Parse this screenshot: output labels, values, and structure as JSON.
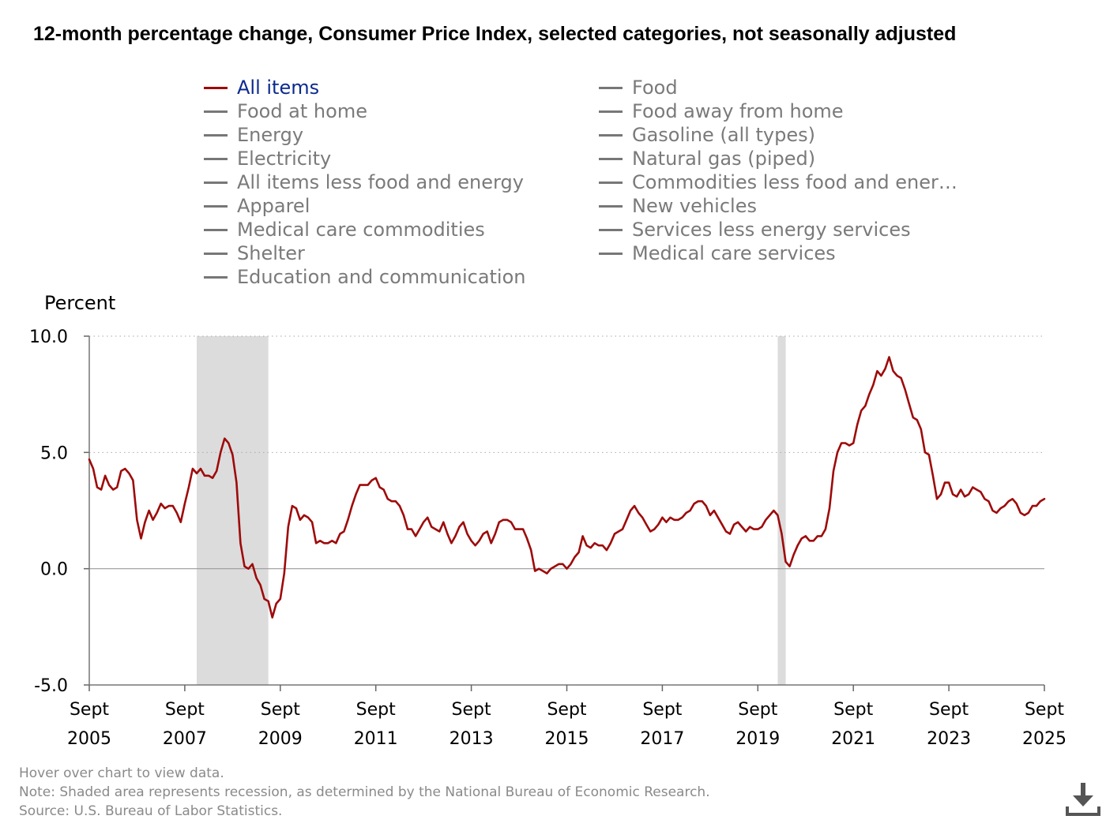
{
  "title": "12-month percentage change, Consumer Price Index, selected categories, not seasonally adjusted",
  "legend": {
    "items": [
      {
        "label": "All items",
        "active": true
      },
      {
        "label": "Food at home",
        "active": false
      },
      {
        "label": "Energy",
        "active": false
      },
      {
        "label": "Electricity",
        "active": false
      },
      {
        "label": "All items less food and energy",
        "active": false
      },
      {
        "label": "Apparel",
        "active": false
      },
      {
        "label": "Medical care commodities",
        "active": false
      },
      {
        "label": "Shelter",
        "active": false
      },
      {
        "label": "Education and communication",
        "active": false
      },
      {
        "label": "Food",
        "active": false
      },
      {
        "label": "Food away from home",
        "active": false
      },
      {
        "label": "Gasoline (all types)",
        "active": false
      },
      {
        "label": "Natural gas (piped)",
        "active": false
      },
      {
        "label": "Commodities less food and ener…",
        "active": false
      },
      {
        "label": "New vehicles",
        "active": false
      },
      {
        "label": "Services less energy services",
        "active": false
      },
      {
        "label": "Medical care services",
        "active": false
      }
    ]
  },
  "footnotes": {
    "hover": "Hover over chart to view data.",
    "note": "Note: Shaded area represents recession, as determined by the National Bureau of Economic Research.",
    "source": "Source: U.S. Bureau of Labor Statistics."
  },
  "download": {
    "icon": "download-icon"
  },
  "chart_data": {
    "type": "line",
    "title": "12-month percentage change, Consumer Price Index, selected categories, not seasonally adjusted",
    "ylabel": "Percent",
    "xlabel": "",
    "ylim": [
      -5,
      10
    ],
    "yticks": [
      -5,
      0,
      5,
      10
    ],
    "ytick_labels": [
      "-5.0",
      "0.0",
      "5.0",
      "10.0"
    ],
    "xlim": [
      2005.667,
      2025.667
    ],
    "xticks": [
      {
        "x": 2005.667,
        "line1": "Sept",
        "line2": "2005"
      },
      {
        "x": 2007.667,
        "line1": "Sept",
        "line2": "2007"
      },
      {
        "x": 2009.667,
        "line1": "Sept",
        "line2": "2009"
      },
      {
        "x": 2011.667,
        "line1": "Sept",
        "line2": "2011"
      },
      {
        "x": 2013.667,
        "line1": "Sept",
        "line2": "2013"
      },
      {
        "x": 2015.667,
        "line1": "Sept",
        "line2": "2015"
      },
      {
        "x": 2017.667,
        "line1": "Sept",
        "line2": "2017"
      },
      {
        "x": 2019.667,
        "line1": "Sept",
        "line2": "2019"
      },
      {
        "x": 2021.667,
        "line1": "Sept",
        "line2": "2021"
      },
      {
        "x": 2023.667,
        "line1": "Sept",
        "line2": "2023"
      },
      {
        "x": 2025.667,
        "line1": "Sept",
        "line2": "2025"
      }
    ],
    "grid": "dotted horizontal",
    "recessions": [
      [
        2007.917,
        2009.417
      ],
      [
        2020.083,
        2020.25
      ]
    ],
    "series": [
      {
        "name": "All items",
        "color": "#9e0a0a",
        "x": [
          2005.667,
          2005.75,
          2005.833,
          2005.917,
          2006.0,
          2006.083,
          2006.167,
          2006.25,
          2006.333,
          2006.417,
          2006.5,
          2006.583,
          2006.667,
          2006.75,
          2006.833,
          2006.917,
          2007.0,
          2007.083,
          2007.167,
          2007.25,
          2007.333,
          2007.417,
          2007.5,
          2007.583,
          2007.667,
          2007.75,
          2007.833,
          2007.917,
          2008.0,
          2008.083,
          2008.167,
          2008.25,
          2008.333,
          2008.417,
          2008.5,
          2008.583,
          2008.667,
          2008.75,
          2008.833,
          2008.917,
          2009.0,
          2009.083,
          2009.167,
          2009.25,
          2009.333,
          2009.417,
          2009.5,
          2009.583,
          2009.667,
          2009.75,
          2009.833,
          2009.917,
          2010.0,
          2010.083,
          2010.167,
          2010.25,
          2010.333,
          2010.417,
          2010.5,
          2010.583,
          2010.667,
          2010.75,
          2010.833,
          2010.917,
          2011.0,
          2011.083,
          2011.167,
          2011.25,
          2011.333,
          2011.417,
          2011.5,
          2011.583,
          2011.667,
          2011.75,
          2011.833,
          2011.917,
          2012.0,
          2012.083,
          2012.167,
          2012.25,
          2012.333,
          2012.417,
          2012.5,
          2012.583,
          2012.667,
          2012.75,
          2012.833,
          2012.917,
          2013.0,
          2013.083,
          2013.167,
          2013.25,
          2013.333,
          2013.417,
          2013.5,
          2013.583,
          2013.667,
          2013.75,
          2013.833,
          2013.917,
          2014.0,
          2014.083,
          2014.167,
          2014.25,
          2014.333,
          2014.417,
          2014.5,
          2014.583,
          2014.667,
          2014.75,
          2014.833,
          2014.917,
          2015.0,
          2015.083,
          2015.167,
          2015.25,
          2015.333,
          2015.417,
          2015.5,
          2015.583,
          2015.667,
          2015.75,
          2015.833,
          2015.917,
          2016.0,
          2016.083,
          2016.167,
          2016.25,
          2016.333,
          2016.417,
          2016.5,
          2016.583,
          2016.667,
          2016.75,
          2016.833,
          2016.917,
          2017.0,
          2017.083,
          2017.167,
          2017.25,
          2017.333,
          2017.417,
          2017.5,
          2017.583,
          2017.667,
          2017.75,
          2017.833,
          2017.917,
          2018.0,
          2018.083,
          2018.167,
          2018.25,
          2018.333,
          2018.417,
          2018.5,
          2018.583,
          2018.667,
          2018.75,
          2018.833,
          2018.917,
          2019.0,
          2019.083,
          2019.167,
          2019.25,
          2019.333,
          2019.417,
          2019.5,
          2019.583,
          2019.667,
          2019.75,
          2019.833,
          2019.917,
          2020.0,
          2020.083,
          2020.167,
          2020.25,
          2020.333,
          2020.417,
          2020.5,
          2020.583,
          2020.667,
          2020.75,
          2020.833,
          2020.917,
          2021.0,
          2021.083,
          2021.167,
          2021.25,
          2021.333,
          2021.417,
          2021.5,
          2021.583,
          2021.667,
          2021.75,
          2021.833,
          2021.917,
          2022.0,
          2022.083,
          2022.167,
          2022.25,
          2022.333,
          2022.417,
          2022.5,
          2022.583,
          2022.667,
          2022.75,
          2022.833,
          2022.917,
          2023.0,
          2023.083,
          2023.167,
          2023.25,
          2023.333,
          2023.417,
          2023.5,
          2023.583,
          2023.667,
          2023.75,
          2023.833,
          2023.917,
          2024.0,
          2024.083,
          2024.167,
          2024.25,
          2024.333,
          2024.417,
          2024.5,
          2024.583,
          2024.667,
          2024.75,
          2024.833,
          2024.917,
          2025.0,
          2025.083,
          2025.167,
          2025.25,
          2025.333,
          2025.417,
          2025.5,
          2025.583,
          2025.667
        ],
        "y": [
          4.7,
          4.3,
          3.5,
          3.4,
          4.0,
          3.6,
          3.4,
          3.5,
          4.2,
          4.3,
          4.1,
          3.8,
          2.1,
          1.3,
          2.0,
          2.5,
          2.1,
          2.4,
          2.8,
          2.6,
          2.7,
          2.7,
          2.4,
          2.0,
          2.8,
          3.5,
          4.3,
          4.1,
          4.3,
          4.0,
          4.0,
          3.9,
          4.2,
          5.0,
          5.6,
          5.4,
          4.9,
          3.7,
          1.1,
          0.1,
          0.0,
          0.2,
          -0.4,
          -0.7,
          -1.3,
          -1.4,
          -2.1,
          -1.5,
          -1.3,
          -0.2,
          1.8,
          2.7,
          2.6,
          2.1,
          2.3,
          2.2,
          2.0,
          1.1,
          1.2,
          1.1,
          1.1,
          1.2,
          1.1,
          1.5,
          1.6,
          2.1,
          2.7,
          3.2,
          3.6,
          3.6,
          3.6,
          3.8,
          3.9,
          3.5,
          3.4,
          3.0,
          2.9,
          2.9,
          2.7,
          2.3,
          1.7,
          1.7,
          1.4,
          1.7,
          2.0,
          2.2,
          1.8,
          1.7,
          1.6,
          2.0,
          1.5,
          1.1,
          1.4,
          1.8,
          2.0,
          1.5,
          1.2,
          1.0,
          1.2,
          1.5,
          1.6,
          1.1,
          1.5,
          2.0,
          2.1,
          2.1,
          2.0,
          1.7,
          1.7,
          1.7,
          1.3,
          0.8,
          -0.1,
          0.0,
          -0.1,
          -0.2,
          0.0,
          0.1,
          0.2,
          0.2,
          0.0,
          0.2,
          0.5,
          0.7,
          1.4,
          1.0,
          0.9,
          1.1,
          1.0,
          1.0,
          0.8,
          1.1,
          1.5,
          1.6,
          1.7,
          2.1,
          2.5,
          2.7,
          2.4,
          2.2,
          1.9,
          1.6,
          1.7,
          1.9,
          2.2,
          2.0,
          2.2,
          2.1,
          2.1,
          2.2,
          2.4,
          2.5,
          2.8,
          2.9,
          2.9,
          2.7,
          2.3,
          2.5,
          2.2,
          1.9,
          1.6,
          1.5,
          1.9,
          2.0,
          1.8,
          1.6,
          1.8,
          1.7,
          1.7,
          1.8,
          2.1,
          2.3,
          2.5,
          2.3,
          1.5,
          0.3,
          0.1,
          0.6,
          1.0,
          1.3,
          1.4,
          1.2,
          1.2,
          1.4,
          1.4,
          1.7,
          2.6,
          4.2,
          5.0,
          5.4,
          5.4,
          5.3,
          5.4,
          6.2,
          6.8,
          7.0,
          7.5,
          7.9,
          8.5,
          8.3,
          8.6,
          9.1,
          8.5,
          8.3,
          8.2,
          7.7,
          7.1,
          6.5,
          6.4,
          6.0,
          5.0,
          4.9,
          4.0,
          3.0,
          3.2,
          3.7,
          3.7,
          3.2,
          3.1,
          3.4,
          3.1,
          3.2,
          3.5,
          3.4,
          3.3,
          3.0,
          2.9,
          2.5,
          2.4,
          2.6,
          2.7,
          2.9,
          3.0,
          2.8,
          2.4,
          2.3,
          2.4,
          2.7,
          2.7,
          2.9,
          3.0
        ]
      }
    ]
  }
}
